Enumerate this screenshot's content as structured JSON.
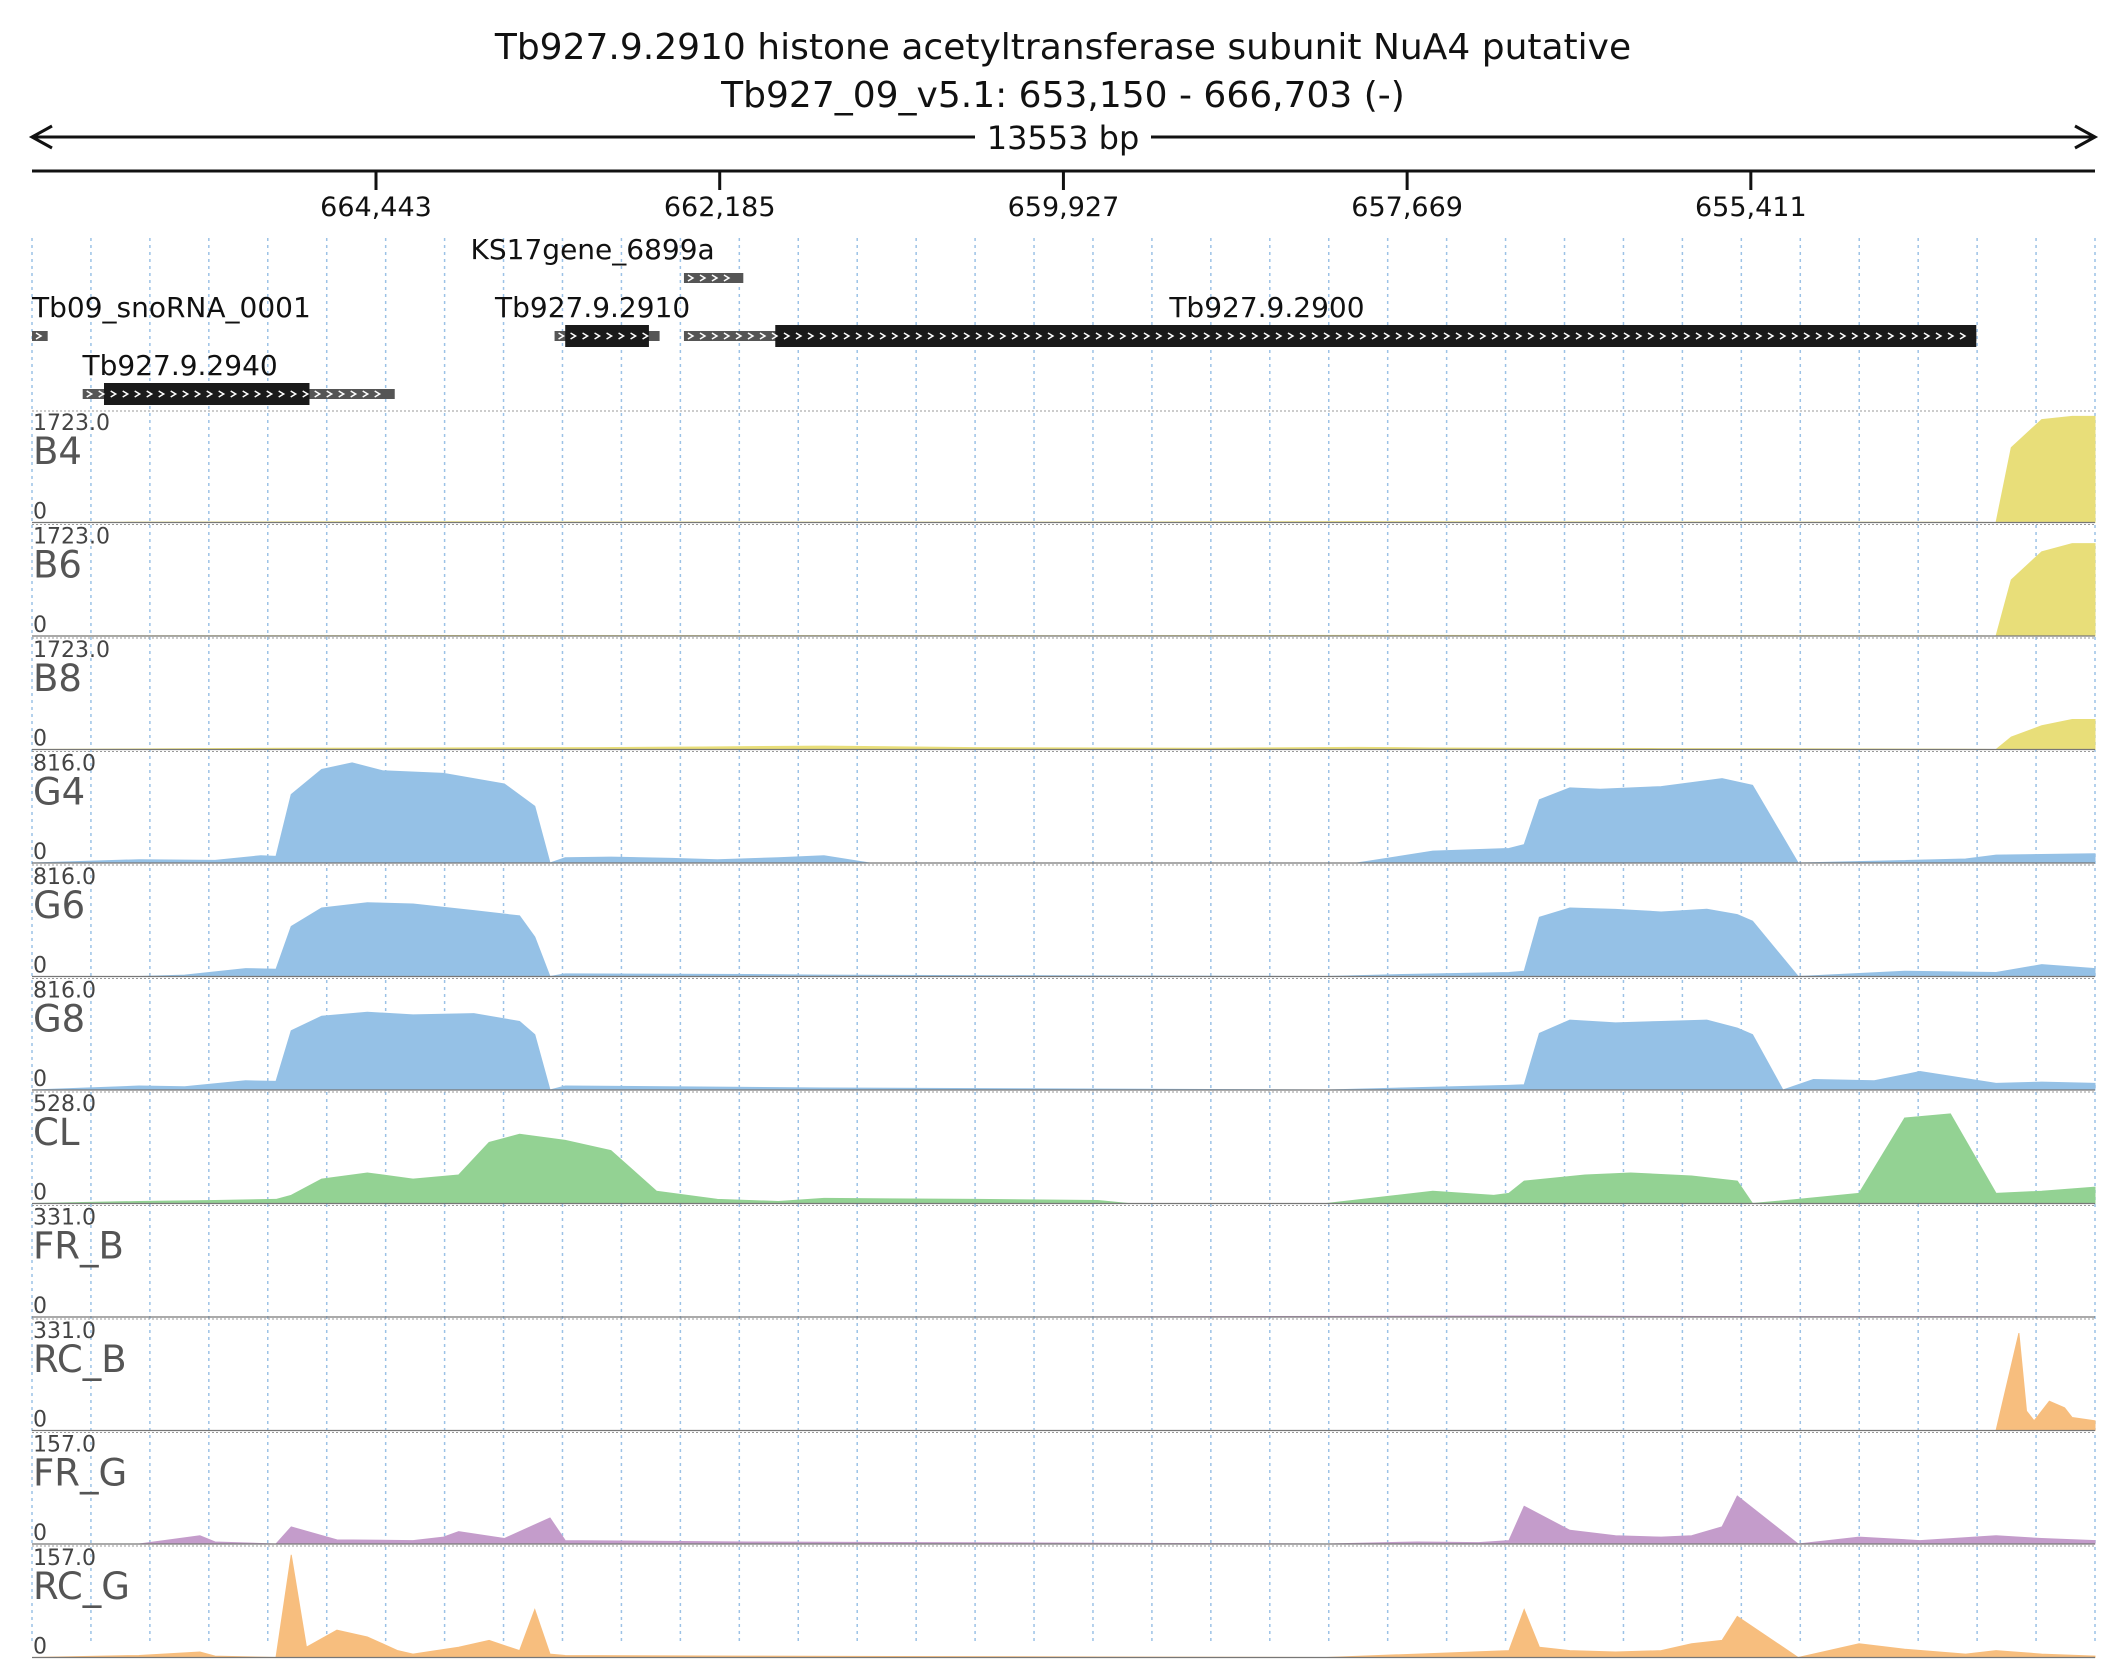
{
  "header": {
    "title_line1": "Tb927.9.2910  histone acetyltransferase subunit NuA4  putative",
    "title_line2": "Tb927_09_v5.1: 653,150 - 666,703 (-)",
    "span_label": "13553 bp"
  },
  "axis": {
    "start": 666703,
    "end": 653150,
    "ticks": [
      {
        "value": 664443,
        "label": "664,443"
      },
      {
        "value": 662185,
        "label": "662,185"
      },
      {
        "value": 659927,
        "label": "659,927"
      },
      {
        "value": 657669,
        "label": "657,669"
      },
      {
        "value": 655411,
        "label": "655,411"
      }
    ]
  },
  "genes": [
    {
      "label": "Tb09_snoRNA_0001",
      "start": 666703,
      "end": 666600,
      "thick": [],
      "row": 2,
      "label_at": 666703
    },
    {
      "label": "Tb927.9.2940",
      "start": 666370,
      "end": 664320,
      "thick": [
        666230,
        664880
      ],
      "row": 3,
      "label_at": 665730
    },
    {
      "label": "Tb927.9.2910",
      "start": 663270,
      "end": 662580,
      "thick": [
        663200,
        662650
      ],
      "row": 2,
      "label_at": 663020
    },
    {
      "label": "KS17gene_6899a",
      "start": 662420,
      "end": 662030,
      "thick": [],
      "row": 1,
      "label_at": 663020
    },
    {
      "label": "Tb927.9.2900",
      "start": 662420,
      "end": 653930,
      "thick": [
        661820,
        653930
      ],
      "row": 2,
      "label_at": 658590
    }
  ],
  "colors": {
    "yellow": "#E8DE79",
    "blue": "#95C1E6",
    "green": "#93D293",
    "orange": "#F7BE7E",
    "purple": "#C49CCB",
    "gene_thick": "#1A1A1A",
    "gene_thin": "#555555",
    "grid": "#9CC2E6"
  },
  "chart_data": {
    "type": "area",
    "x_unit": "genomic position (bp), reversed (-) strand",
    "tracks": [
      {
        "name": "B4",
        "max": "1723.0",
        "min": "0",
        "color": "yellow",
        "x": [
          666703,
          666100,
          665000,
          664000,
          663000,
          662000,
          661000,
          660000,
          659000,
          658000,
          657000,
          656000,
          655000,
          654500,
          654000,
          653800,
          653700,
          653500,
          653300,
          653150
        ],
        "y": [
          0,
          5,
          10,
          12,
          8,
          7,
          6,
          6,
          10,
          14,
          10,
          8,
          6,
          5,
          4,
          0,
          1200,
          1650,
          1700,
          1700
        ]
      },
      {
        "name": "B6",
        "max": "1723.0",
        "min": "0",
        "color": "yellow",
        "x": [
          666703,
          665000,
          664000,
          662000,
          660000,
          658000,
          656000,
          654000,
          653800,
          653700,
          653500,
          653300,
          653150
        ],
        "y": [
          0,
          5,
          8,
          6,
          5,
          10,
          6,
          4,
          0,
          900,
          1350,
          1480,
          1480
        ]
      },
      {
        "name": "B8",
        "max": "1723.0",
        "min": "0",
        "color": "yellow",
        "x": [
          666703,
          665000,
          663000,
          662300,
          661500,
          660500,
          659000,
          658000,
          657500,
          656000,
          654000,
          653800,
          653700,
          653500,
          653300,
          653150
        ],
        "y": [
          0,
          20,
          30,
          40,
          55,
          30,
          20,
          35,
          25,
          15,
          5,
          0,
          200,
          380,
          480,
          480
        ]
      },
      {
        "name": "G4",
        "max": "816.0",
        "min": "0",
        "color": "blue",
        "x": [
          666703,
          666000,
          665500,
          665200,
          665100,
          665000,
          664800,
          664600,
          664400,
          664000,
          663600,
          663400,
          663300,
          663200,
          662900,
          662500,
          662200,
          661800,
          661500,
          661200,
          660000,
          658000,
          657500,
          657000,
          656900,
          656800,
          656600,
          656400,
          656000,
          655600,
          655400,
          655100,
          654000,
          653800,
          653150
        ],
        "y": [
          0,
          25,
          20,
          55,
          50,
          520,
          710,
          760,
          700,
          680,
          600,
          430,
          0,
          40,
          45,
          35,
          25,
          40,
          55,
          0,
          0,
          0,
          90,
          110,
          140,
          480,
          570,
          560,
          580,
          640,
          590,
          0,
          30,
          60,
          70
        ]
      },
      {
        "name": "G6",
        "max": "816.0",
        "min": "0",
        "color": "blue",
        "x": [
          666703,
          666000,
          665700,
          665300,
          665100,
          665000,
          664800,
          664500,
          664200,
          663800,
          663500,
          663400,
          663300,
          663200,
          662000,
          661500,
          658200,
          657700,
          657000,
          656900,
          656800,
          656600,
          656300,
          656000,
          655700,
          655500,
          655400,
          655100,
          654400,
          653800,
          653500,
          653150
        ],
        "y": [
          0,
          0,
          10,
          60,
          55,
          380,
          520,
          560,
          550,
          500,
          460,
          300,
          0,
          20,
          15,
          10,
          0,
          15,
          30,
          40,
          450,
          520,
          510,
          490,
          510,
          470,
          420,
          0,
          40,
          30,
          90,
          60
        ]
      },
      {
        "name": "G8",
        "max": "816.0",
        "min": "0",
        "color": "blue",
        "x": [
          666703,
          666000,
          665700,
          665300,
          665100,
          665000,
          664800,
          664500,
          664200,
          663800,
          663500,
          663400,
          663300,
          663200,
          662000,
          661500,
          658200,
          657700,
          657000,
          656900,
          656800,
          656600,
          656300,
          656000,
          655700,
          655500,
          655400,
          655200,
          655000,
          654600,
          654300,
          653800,
          653500,
          653150
        ],
        "y": [
          0,
          30,
          25,
          70,
          65,
          450,
          560,
          590,
          570,
          580,
          520,
          420,
          0,
          30,
          20,
          15,
          0,
          15,
          35,
          40,
          430,
          530,
          510,
          520,
          530,
          470,
          420,
          0,
          80,
          70,
          140,
          50,
          60,
          50
        ]
      },
      {
        "name": "CL",
        "max": "528.0",
        "min": "0",
        "color": "green",
        "x": [
          666703,
          666000,
          665500,
          665100,
          665000,
          664800,
          664500,
          664200,
          663900,
          663700,
          663500,
          663200,
          662900,
          662600,
          662200,
          661800,
          661500,
          660500,
          659700,
          659500,
          658200,
          657500,
          657100,
          657000,
          656900,
          656500,
          656200,
          655800,
          655500,
          655400,
          655100,
          654700,
          654400,
          654100,
          653800,
          653500,
          653150
        ],
        "y": [
          0,
          10,
          15,
          20,
          40,
          120,
          150,
          120,
          140,
          300,
          340,
          310,
          260,
          60,
          20,
          10,
          25,
          20,
          15,
          0,
          0,
          60,
          40,
          50,
          110,
          140,
          150,
          135,
          110,
          0,
          20,
          50,
          420,
          440,
          50,
          60,
          80
        ]
      },
      {
        "name": "FR_B",
        "max": "331.0",
        "min": "0",
        "color": "purple",
        "x": [
          666703,
          660000,
          659000,
          658000,
          657000,
          656000,
          655000,
          654000,
          653150
        ],
        "y": [
          0,
          0,
          1,
          2,
          3,
          2,
          1,
          1,
          0
        ]
      },
      {
        "name": "RC_B",
        "max": "331.0",
        "min": "0",
        "color": "orange",
        "x": [
          666703,
          654000,
          653800,
          653650,
          653600,
          653550,
          653450,
          653350,
          653300,
          653150
        ],
        "y": [
          0,
          0,
          0,
          300,
          60,
          30,
          90,
          70,
          40,
          30
        ]
      },
      {
        "name": "FR_G",
        "max": "157.0",
        "min": "0",
        "color": "purple",
        "x": [
          666703,
          666000,
          665600,
          665500,
          665100,
          665000,
          664700,
          664200,
          664000,
          663900,
          663600,
          663300,
          663200,
          662000,
          658200,
          657600,
          657200,
          657000,
          656900,
          656600,
          656300,
          656000,
          655800,
          655600,
          655500,
          655100,
          654700,
          654300,
          653800,
          653500,
          653150
        ],
        "y": [
          0,
          0,
          12,
          3,
          0,
          25,
          6,
          5,
          10,
          18,
          8,
          38,
          5,
          3,
          0,
          3,
          2,
          5,
          55,
          20,
          12,
          10,
          12,
          25,
          70,
          0,
          10,
          5,
          12,
          8,
          5
        ]
      },
      {
        "name": "RC_G",
        "max": "157.0",
        "min": "0",
        "color": "orange",
        "x": [
          666703,
          666000,
          665600,
          665500,
          665100,
          665000,
          664900,
          664700,
          664500,
          664300,
          664200,
          663900,
          663700,
          663500,
          663400,
          663300,
          663200,
          662000,
          658200,
          657600,
          657000,
          656900,
          656800,
          656600,
          656300,
          656000,
          655800,
          655600,
          655500,
          655100,
          654700,
          654400,
          654000,
          653800,
          653500,
          653150
        ],
        "y": [
          0,
          3,
          8,
          2,
          0,
          150,
          15,
          40,
          30,
          10,
          5,
          15,
          25,
          10,
          70,
          5,
          3,
          2,
          0,
          5,
          10,
          70,
          15,
          10,
          8,
          10,
          20,
          25,
          60,
          0,
          20,
          12,
          5,
          10,
          5,
          2
        ]
      }
    ]
  }
}
